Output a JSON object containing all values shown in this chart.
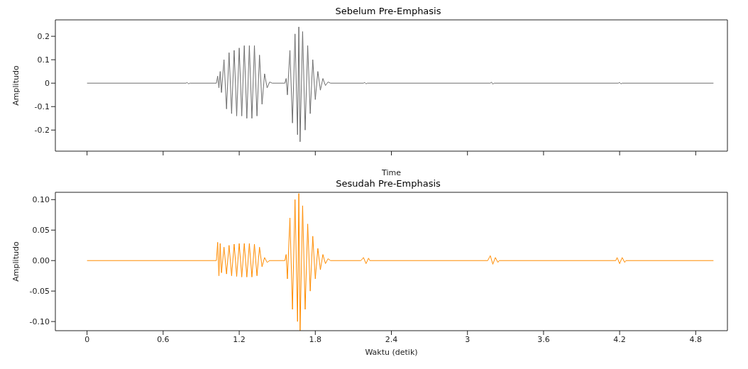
{
  "chart_data": [
    {
      "type": "line",
      "title": "Sebelum Pre-Emphasis",
      "xlabel": "Time",
      "ylabel": "Amplitudo",
      "color": "#6e6e6e",
      "tick_labels": "y",
      "xlim": [
        -0.25,
        5.05
      ],
      "xticks": [
        0,
        0.6,
        1.2,
        1.8,
        2.4,
        3,
        3.6,
        4.2,
        4.8
      ],
      "ylim": [
        -0.29,
        0.27
      ],
      "yticks": [
        -0.2,
        -0.1,
        0.0,
        0.1,
        0.2
      ],
      "x": [
        0,
        0.78,
        0.79,
        0.8,
        0.81,
        1.02,
        1.03,
        1.04,
        1.05,
        1.06,
        1.08,
        1.1,
        1.12,
        1.14,
        1.16,
        1.18,
        1.2,
        1.22,
        1.24,
        1.26,
        1.28,
        1.3,
        1.32,
        1.34,
        1.36,
        1.38,
        1.4,
        1.42,
        1.44,
        1.46,
        1.56,
        1.57,
        1.58,
        1.6,
        1.62,
        1.64,
        1.66,
        1.67,
        1.68,
        1.7,
        1.72,
        1.74,
        1.76,
        1.78,
        1.8,
        1.82,
        1.84,
        1.86,
        1.88,
        1.9,
        1.92,
        2.18,
        2.19,
        2.2,
        2.21,
        3.18,
        3.19,
        3.2,
        3.21,
        4.19,
        4.2,
        4.21,
        4.22,
        4.94
      ],
      "values": [
        0,
        0,
        0.003,
        -0.003,
        0,
        0,
        0.03,
        -0.02,
        0.05,
        -0.04,
        0.1,
        -0.11,
        0.13,
        -0.13,
        0.14,
        -0.14,
        0.15,
        -0.14,
        0.16,
        -0.15,
        0.16,
        -0.15,
        0.16,
        -0.14,
        0.12,
        -0.09,
        0.04,
        -0.02,
        0.005,
        0,
        0,
        0.02,
        -0.05,
        0.14,
        -0.17,
        0.21,
        -0.22,
        0.24,
        -0.25,
        0.22,
        -0.2,
        0.16,
        -0.13,
        0.1,
        -0.07,
        0.05,
        -0.03,
        0.02,
        -0.01,
        0.005,
        0,
        0,
        0.003,
        -0.003,
        0,
        0,
        0.004,
        -0.004,
        0,
        0,
        0.003,
        -0.003,
        0,
        0
      ]
    },
    {
      "type": "line",
      "title": "Sesudah Pre-Emphasis",
      "xlabel": "Waktu (detik)",
      "ylabel": "Amplitudo",
      "color": "#ff8c00",
      "xlim": [
        -0.25,
        5.05
      ],
      "xticks": [
        0,
        0.6,
        1.2,
        1.8,
        2.4,
        3,
        3.6,
        4.2,
        4.8
      ],
      "ylim": [
        -0.115,
        0.112
      ],
      "yticks": [
        {
          "value": -0.1,
          "label": "-0.10"
        },
        {
          "value": -0.05,
          "label": "-0.05"
        },
        {
          "value": 0,
          "label": "0.00"
        },
        {
          "value": 0.05,
          "label": "0.05"
        },
        {
          "value": 0.1,
          "label": "0.10"
        }
      ],
      "x": [
        0,
        1.02,
        1.03,
        1.04,
        1.05,
        1.06,
        1.08,
        1.1,
        1.12,
        1.14,
        1.16,
        1.18,
        1.2,
        1.22,
        1.24,
        1.26,
        1.28,
        1.3,
        1.32,
        1.34,
        1.36,
        1.38,
        1.4,
        1.42,
        1.44,
        1.56,
        1.57,
        1.58,
        1.6,
        1.62,
        1.64,
        1.66,
        1.67,
        1.68,
        1.7,
        1.72,
        1.74,
        1.76,
        1.78,
        1.8,
        1.82,
        1.84,
        1.86,
        1.88,
        1.9,
        1.92,
        2.16,
        2.18,
        2.2,
        2.22,
        2.23,
        3.16,
        3.18,
        3.2,
        3.22,
        3.24,
        3.25,
        4.17,
        4.18,
        4.2,
        4.22,
        4.24,
        4.25,
        4.94
      ],
      "values": [
        0,
        0,
        0.03,
        -0.025,
        0.028,
        -0.02,
        0.022,
        -0.022,
        0.025,
        -0.025,
        0.027,
        -0.026,
        0.028,
        -0.027,
        0.028,
        -0.027,
        0.028,
        -0.027,
        0.027,
        -0.025,
        0.022,
        -0.01,
        0.005,
        -0.003,
        0,
        0,
        0.01,
        -0.03,
        0.07,
        -0.08,
        0.1,
        -0.1,
        0.11,
        -0.115,
        0.09,
        -0.08,
        0.06,
        -0.05,
        0.04,
        -0.03,
        0.02,
        -0.015,
        0.01,
        -0.005,
        0.003,
        0,
        0,
        0.005,
        -0.005,
        0.004,
        0,
        0,
        0.008,
        -0.006,
        0.005,
        -0.003,
        0,
        0,
        0.005,
        -0.005,
        0.005,
        -0.003,
        0,
        0
      ]
    }
  ]
}
